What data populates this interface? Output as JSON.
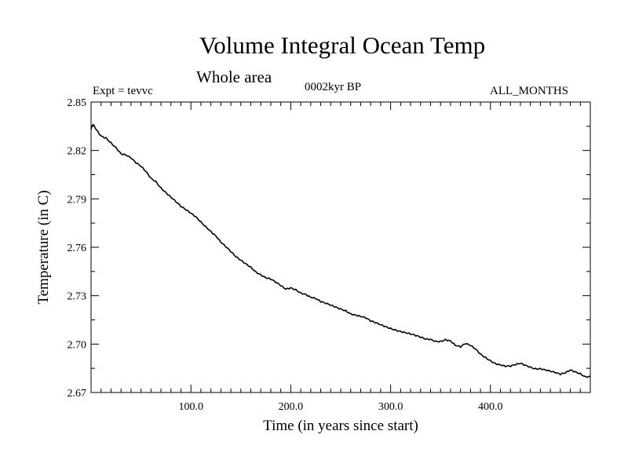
{
  "chart_data": {
    "type": "line",
    "title": "Volume Integral Ocean Temp",
    "subtitle": "Whole area",
    "annotations": {
      "experiment": "Expt = tevvc",
      "period": "0002kyr BP",
      "months": "ALL_MONTHS"
    },
    "xlabel": "Time (in years since start)",
    "ylabel": "Temperature (in C)",
    "xlim": [
      0,
      500
    ],
    "ylim": [
      2.67,
      2.85
    ],
    "xticks": [
      100,
      200,
      300,
      400
    ],
    "xtick_labels": [
      "100.0",
      "200.0",
      "300.0",
      "400.0"
    ],
    "yticks": [
      2.67,
      2.7,
      2.73,
      2.76,
      2.79,
      2.82,
      2.85
    ],
    "ytick_labels": [
      "2.67",
      "2.70",
      "2.73",
      "2.76",
      "2.79",
      "2.82",
      "2.85"
    ],
    "grid": false,
    "series": [
      {
        "x": [
          0,
          2,
          5,
          10,
          15,
          20,
          25,
          30,
          35,
          40,
          45,
          50,
          55,
          60,
          65,
          70,
          75,
          80,
          85,
          90,
          95,
          100,
          105,
          110,
          115,
          120,
          125,
          130,
          135,
          140,
          145,
          150,
          155,
          160,
          165,
          170,
          175,
          180,
          185,
          190,
          195,
          200,
          205,
          210,
          215,
          220,
          225,
          230,
          235,
          240,
          245,
          250,
          255,
          260,
          265,
          270,
          275,
          280,
          285,
          290,
          295,
          300,
          305,
          310,
          315,
          320,
          325,
          330,
          335,
          340,
          345,
          350,
          355,
          360,
          365,
          370,
          375,
          380,
          385,
          390,
          395,
          400,
          405,
          410,
          415,
          420,
          425,
          430,
          435,
          440,
          445,
          450,
          455,
          460,
          465,
          470,
          475,
          480,
          485,
          490,
          495,
          500
        ],
        "values": [
          2.833,
          2.836,
          2.833,
          2.829,
          2.828,
          2.825,
          2.822,
          2.818,
          2.817,
          2.815,
          2.812,
          2.81,
          2.807,
          2.803,
          2.801,
          2.797,
          2.794,
          2.791,
          2.788,
          2.785,
          2.783,
          2.781,
          2.779,
          2.776,
          2.773,
          2.77,
          2.767,
          2.763,
          2.76,
          2.757,
          2.754,
          2.752,
          2.75,
          2.748,
          2.745,
          2.743,
          2.741,
          2.74,
          2.738,
          2.736,
          2.734,
          2.735,
          2.734,
          2.732,
          2.731,
          2.729,
          2.728,
          2.726,
          2.725,
          2.724,
          2.723,
          2.722,
          2.721,
          2.719,
          2.718,
          2.717,
          2.716,
          2.714,
          2.713,
          2.712,
          2.711,
          2.71,
          2.709,
          2.708,
          2.707,
          2.706,
          2.705,
          2.704,
          2.703,
          2.703,
          2.702,
          2.702,
          2.703,
          2.702,
          2.699,
          2.698,
          2.7,
          2.699,
          2.697,
          2.694,
          2.692,
          2.69,
          2.688,
          2.687,
          2.686,
          2.686,
          2.687,
          2.688,
          2.687,
          2.686,
          2.685,
          2.685,
          2.684,
          2.683,
          2.682,
          2.681,
          2.682,
          2.684,
          2.683,
          2.682,
          2.68,
          2.68
        ]
      }
    ]
  }
}
